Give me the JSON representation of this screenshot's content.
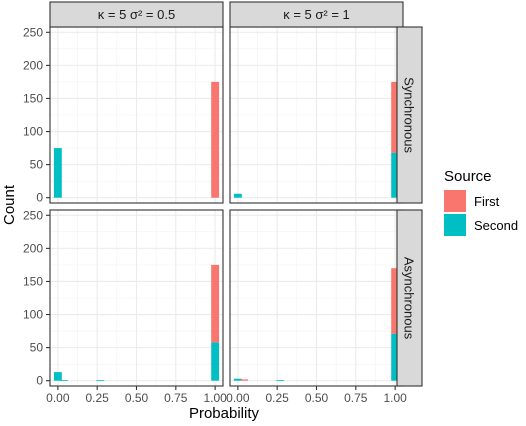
{
  "chart_data": {
    "type": "bar",
    "stacked": true,
    "xlabel": "Probability",
    "ylabel": "Count",
    "xlim": [
      -0.05,
      1.05
    ],
    "ylim": [
      -8,
      258
    ],
    "x_ticks": [
      "0.00",
      "0.25",
      "0.50",
      "0.75",
      "1.00"
    ],
    "x_tick_values": [
      0,
      0.25,
      0.5,
      0.75,
      1
    ],
    "y_ticks": [
      "0",
      "50",
      "100",
      "150",
      "200",
      "250"
    ],
    "y_tick_values": [
      0,
      50,
      100,
      150,
      200,
      250
    ],
    "grid": true,
    "col_labels": [
      "κ = 5 σ² = 0.5",
      "κ = 5 σ² = 1"
    ],
    "row_labels": [
      "Synchronous",
      "Asynchronous"
    ],
    "legend": {
      "title": "Source",
      "position": "right",
      "items": [
        {
          "name": "First",
          "color": "#F8766D"
        },
        {
          "name": "Second",
          "color": "#00BFC4"
        }
      ]
    },
    "panels": [
      {
        "row": "Synchronous",
        "col": "κ = 5 σ² = 0.5",
        "bars": [
          {
            "x": 0.0,
            "first": 0,
            "second": 75
          },
          {
            "x": 1.0,
            "first": 175,
            "second": 0
          }
        ]
      },
      {
        "row": "Synchronous",
        "col": "κ = 5 σ² = 1",
        "bars": [
          {
            "x": 0.0,
            "first": 0,
            "second": 6
          },
          {
            "x": 1.0,
            "first": 107,
            "second": 68
          }
        ]
      },
      {
        "row": "Asynchronous",
        "col": "κ = 5 σ² = 0.5",
        "bars": [
          {
            "x": 0.0,
            "first": 0,
            "second": 13
          },
          {
            "x": 0.04,
            "first": 0,
            "second": 1
          },
          {
            "x": 0.27,
            "first": 0,
            "second": 1
          },
          {
            "x": 1.0,
            "first": 117,
            "second": 58
          }
        ]
      },
      {
        "row": "Asynchronous",
        "col": "κ = 5 σ² = 1",
        "bars": [
          {
            "x": 0.0,
            "first": 0,
            "second": 3
          },
          {
            "x": 0.04,
            "first": 2,
            "second": 0
          },
          {
            "x": 0.27,
            "first": 0,
            "second": 1
          },
          {
            "x": 1.0,
            "first": 99,
            "second": 71
          }
        ]
      }
    ]
  }
}
